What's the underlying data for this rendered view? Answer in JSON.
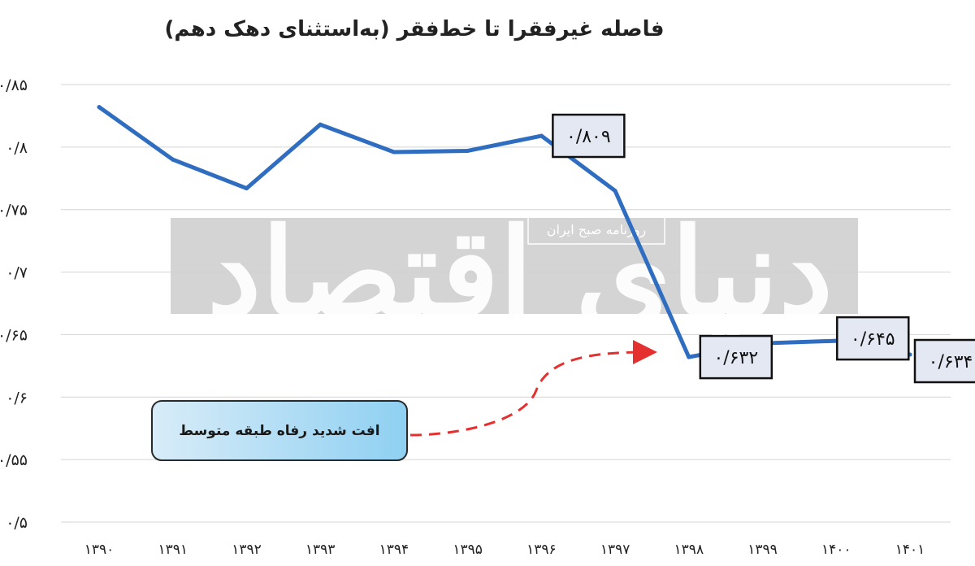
{
  "chart_data": {
    "type": "line",
    "title": "فاصله غیرفقرا تا خط‌فقر (به‌استثنای دهک دهم)",
    "categories": [
      "۱۳۹۰",
      "۱۳۹۱",
      "۱۳۹۲",
      "۱۳۹۳",
      "۱۳۹۴",
      "۱۳۹۵",
      "۱۳۹۶",
      "۱۳۹۷",
      "۱۳۹۸",
      "۱۳۹۹",
      "۱۴۰۰",
      "۱۴۰۱"
    ],
    "values": [
      0.832,
      0.79,
      0.767,
      0.818,
      0.796,
      0.797,
      0.809,
      0.765,
      0.632,
      0.643,
      0.645,
      0.634
    ],
    "ylim": [
      0.5,
      0.85
    ],
    "yticks": [
      {
        "value": 0.85,
        "label": "۰/۸۵"
      },
      {
        "value": 0.8,
        "label": "۰/۸"
      },
      {
        "value": 0.75,
        "label": "۰/۷۵"
      },
      {
        "value": 0.7,
        "label": "۰/۷"
      },
      {
        "value": 0.65,
        "label": "۰/۶۵"
      },
      {
        "value": 0.6,
        "label": "۰/۶"
      },
      {
        "value": 0.55,
        "label": "۰/۵۵"
      },
      {
        "value": 0.5,
        "label": "۰/۵"
      }
    ],
    "grid": true,
    "data_labels": [
      {
        "index": 6,
        "text": "۰/۸۰۹"
      },
      {
        "index": 8,
        "text": "۰/۶۳۲"
      },
      {
        "index": 10,
        "text": "۰/۶۴۵"
      },
      {
        "index": 11,
        "text": "۰/۶۳۴"
      }
    ],
    "annotation": {
      "text": "افت شدید رفاه طبقه متوسط"
    },
    "series_color": "#2e6dbf"
  },
  "watermark": {
    "main": "دنیای اقتصاد",
    "sub": "روزنامه صبح ایران"
  }
}
